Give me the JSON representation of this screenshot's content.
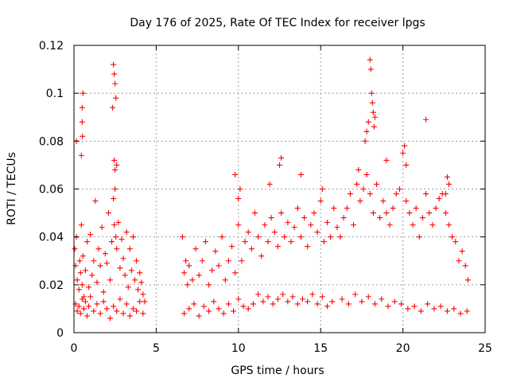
{
  "chart_data": {
    "type": "scatter",
    "title": "Day 176 of 2025, Rate Of TEC Index for receiver lpgs",
    "xlabel": "GPS time / hours",
    "ylabel": "ROTI / TECUs",
    "xlim": [
      0,
      25
    ],
    "ylim": [
      0,
      0.12
    ],
    "xticks": [
      0,
      5,
      10,
      15,
      20,
      25
    ],
    "xtick_labels": [
      "0",
      "5",
      "10",
      "15",
      "20",
      "25"
    ],
    "yticks": [
      0,
      0.02,
      0.04,
      0.06,
      0.08,
      0.1,
      0.12
    ],
    "ytick_labels": [
      "0",
      "0.02",
      "0.04",
      "0.06",
      "0.08",
      "0.1",
      "0.12"
    ],
    "grid": true,
    "marker": "plus",
    "color": "#ff0000",
    "series": [
      {
        "name": "ROTI",
        "x": [
          0.05,
          0.1,
          0.15,
          0.2,
          0.3,
          0.35,
          0.4,
          0.45,
          0.5,
          0.55,
          0.6,
          0.7,
          0.8,
          0.9,
          1.0,
          1.1,
          1.2,
          1.3,
          1.4,
          1.5,
          1.6,
          1.7,
          1.8,
          1.9,
          2.0,
          2.1,
          2.2,
          2.3,
          2.4,
          2.45,
          2.5,
          2.55,
          2.6,
          2.7,
          2.8,
          2.9,
          3.0,
          3.1,
          3.2,
          3.3,
          3.4,
          3.5,
          3.6,
          3.7,
          3.8,
          3.9,
          4.0,
          4.1,
          4.2,
          4.3,
          0.1,
          0.2,
          0.3,
          0.4,
          0.5,
          0.6,
          0.7,
          0.8,
          0.9,
          1.0,
          1.2,
          1.4,
          1.6,
          1.8,
          2.0,
          2.2,
          2.4,
          2.6,
          2.8,
          3.0,
          3.2,
          3.4,
          3.6,
          3.8,
          4.0,
          4.2,
          0.15,
          0.45,
          0.5,
          0.55,
          2.4,
          2.45,
          2.5,
          2.55,
          2.35,
          2.6,
          0.5,
          0.52,
          2.45,
          2.5,
          6.6,
          6.7,
          6.8,
          6.9,
          7.0,
          7.2,
          7.4,
          7.6,
          7.8,
          8.0,
          8.2,
          8.4,
          8.6,
          8.8,
          9.0,
          9.2,
          9.4,
          9.6,
          9.8,
          10.0,
          10.2,
          10.4,
          10.6,
          10.8,
          11.0,
          11.2,
          11.4,
          11.6,
          11.8,
          12.0,
          12.2,
          12.4,
          12.6,
          12.8,
          13.0,
          13.2,
          13.4,
          13.6,
          13.8,
          14.0,
          14.2,
          14.4,
          14.6,
          14.8,
          15.0,
          15.2,
          15.4,
          15.6,
          15.8,
          16.0,
          6.7,
          7.0,
          7.3,
          7.6,
          7.9,
          8.2,
          8.5,
          8.8,
          9.1,
          9.4,
          9.7,
          10.0,
          10.3,
          10.6,
          10.9,
          11.2,
          11.5,
          11.8,
          12.1,
          12.4,
          12.7,
          13.0,
          13.3,
          13.6,
          13.9,
          14.2,
          14.5,
          14.8,
          15.1,
          15.4,
          15.7,
          9.8,
          10.0,
          10.1,
          11.9,
          12.5,
          12.6,
          13.8,
          15.1,
          16.2,
          16.4,
          16.6,
          16.8,
          17.0,
          17.2,
          17.4,
          17.6,
          17.8,
          18.0,
          18.2,
          18.4,
          18.6,
          18.8,
          19.0,
          19.2,
          19.4,
          19.6,
          19.8,
          20.0,
          20.2,
          20.4,
          20.6,
          20.8,
          21.0,
          21.2,
          21.4,
          21.6,
          21.8,
          22.0,
          22.2,
          22.4,
          22.6,
          22.8,
          23.0,
          23.2,
          23.4,
          23.6,
          23.8,
          23.95,
          16.3,
          16.7,
          17.1,
          17.5,
          17.9,
          18.3,
          18.7,
          19.1,
          19.5,
          19.9,
          20.3,
          20.7,
          21.1,
          21.5,
          21.9,
          22.3,
          22.7,
          23.1,
          23.5,
          23.9,
          17.3,
          17.7,
          17.9,
          18.0,
          18.05,
          18.1,
          18.15,
          18.2,
          18.25,
          17.8,
          18.3,
          19.0,
          20.1,
          20.2,
          21.4,
          22.7,
          22.8,
          22.6
        ],
        "y": [
          0.035,
          0.028,
          0.04,
          0.022,
          0.018,
          0.03,
          0.025,
          0.045,
          0.02,
          0.032,
          0.015,
          0.026,
          0.038,
          0.019,
          0.041,
          0.024,
          0.03,
          0.055,
          0.021,
          0.035,
          0.028,
          0.044,
          0.017,
          0.033,
          0.029,
          0.05,
          0.022,
          0.038,
          0.056,
          0.045,
          0.06,
          0.04,
          0.035,
          0.046,
          0.027,
          0.039,
          0.031,
          0.024,
          0.042,
          0.019,
          0.035,
          0.026,
          0.04,
          0.022,
          0.03,
          0.018,
          0.025,
          0.021,
          0.016,
          0.013,
          0.012,
          0.009,
          0.011,
          0.008,
          0.014,
          0.01,
          0.013,
          0.007,
          0.011,
          0.015,
          0.009,
          0.012,
          0.008,
          0.013,
          0.01,
          0.006,
          0.011,
          0.009,
          0.014,
          0.008,
          0.012,
          0.007,
          0.01,
          0.009,
          0.013,
          0.008,
          0.08,
          0.074,
          0.094,
          0.1,
          0.112,
          0.108,
          0.104,
          0.098,
          0.094,
          0.07,
          0.088,
          0.082,
          0.072,
          0.068,
          0.04,
          0.025,
          0.03,
          0.02,
          0.028,
          0.022,
          0.035,
          0.024,
          0.03,
          0.038,
          0.02,
          0.026,
          0.034,
          0.028,
          0.04,
          0.022,
          0.03,
          0.036,
          0.025,
          0.045,
          0.03,
          0.038,
          0.042,
          0.035,
          0.05,
          0.04,
          0.032,
          0.045,
          0.038,
          0.048,
          0.042,
          0.036,
          0.05,
          0.04,
          0.046,
          0.038,
          0.044,
          0.052,
          0.04,
          0.048,
          0.036,
          0.045,
          0.05,
          0.042,
          0.055,
          0.038,
          0.046,
          0.04,
          0.052,
          0.044,
          0.008,
          0.01,
          0.012,
          0.007,
          0.011,
          0.009,
          0.013,
          0.01,
          0.008,
          0.012,
          0.009,
          0.014,
          0.011,
          0.01,
          0.012,
          0.016,
          0.013,
          0.015,
          0.012,
          0.014,
          0.016,
          0.013,
          0.015,
          0.012,
          0.014,
          0.013,
          0.016,
          0.012,
          0.015,
          0.011,
          0.013,
          0.066,
          0.056,
          0.06,
          0.062,
          0.07,
          0.073,
          0.066,
          0.06,
          0.04,
          0.048,
          0.052,
          0.058,
          0.045,
          0.062,
          0.055,
          0.06,
          0.066,
          0.058,
          0.05,
          0.062,
          0.048,
          0.055,
          0.05,
          0.045,
          0.052,
          0.058,
          0.06,
          0.075,
          0.055,
          0.05,
          0.045,
          0.052,
          0.04,
          0.048,
          0.058,
          0.05,
          0.045,
          0.052,
          0.056,
          0.058,
          0.05,
          0.045,
          0.04,
          0.038,
          0.03,
          0.034,
          0.028,
          0.022,
          0.014,
          0.012,
          0.016,
          0.013,
          0.015,
          0.012,
          0.014,
          0.011,
          0.013,
          0.012,
          0.01,
          0.011,
          0.009,
          0.012,
          0.01,
          0.011,
          0.009,
          0.01,
          0.008,
          0.009,
          0.068,
          0.08,
          0.088,
          0.114,
          0.11,
          0.1,
          0.096,
          0.092,
          0.086,
          0.084,
          0.09,
          0.072,
          0.078,
          0.07,
          0.089,
          0.065,
          0.062,
          0.058
        ]
      }
    ]
  }
}
